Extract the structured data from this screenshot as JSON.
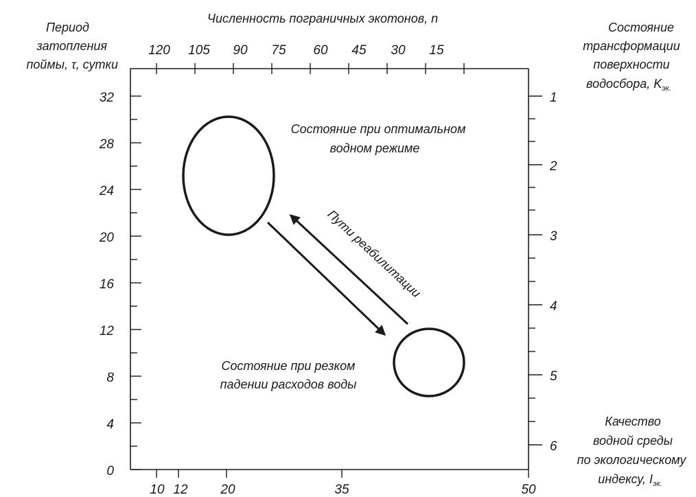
{
  "axes": {
    "left": {
      "title_lines": [
        "Период",
        "затопления",
        "поймы, τ, сутки"
      ],
      "ticks": [
        "0",
        "4",
        "8",
        "12",
        "16",
        "20",
        "24",
        "28",
        "32"
      ]
    },
    "top": {
      "title": "Численность пограничных экотонов, n",
      "ticks": [
        "120",
        "105",
        "90",
        "75",
        "60",
        "45",
        "30",
        "15"
      ]
    },
    "right": {
      "title_lines": [
        "Состояние",
        "трансформации",
        "поверхности"
      ],
      "title_last_prefix": "водосбора, K",
      "title_last_sub": "эк.",
      "ticks": [
        "1",
        "2",
        "3",
        "4",
        "5",
        "6"
      ]
    },
    "bottom": {
      "title_lines": [
        "Качество",
        "водной среды",
        "по экологическому"
      ],
      "title_last_prefix": "индексу, I",
      "title_last_sub": "эк.",
      "ticks": [
        "10",
        "12",
        "20",
        "35",
        "50"
      ]
    }
  },
  "annotations": {
    "optimal_lines": [
      "Состояние при оптимальном",
      "водном режиме"
    ],
    "sharp_lines": [
      "Состояние при резком",
      "падении расходов воды"
    ],
    "paths": "Пути реабилитации"
  }
}
